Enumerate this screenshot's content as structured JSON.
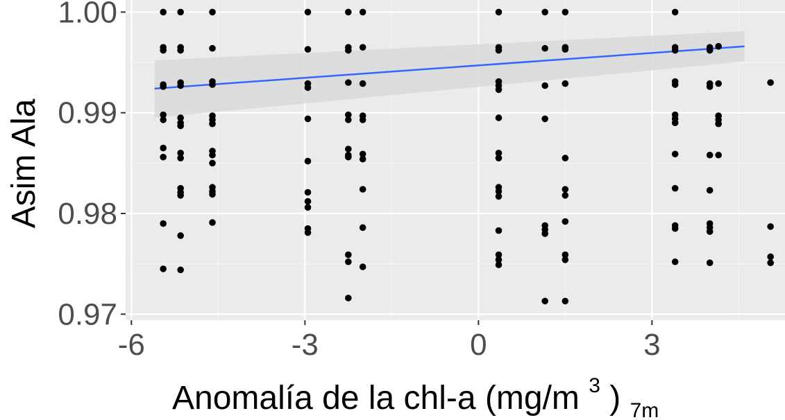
{
  "chart_data": {
    "type": "scatter",
    "title": "",
    "xlabel": "Anomalía de la chl-a (mg/m",
    "xlabel_superscript": "3",
    "xlabel_close": " )",
    "xlabel_subscript": "7m",
    "ylabel": "Asim Ala",
    "xlim": [
      -6.1,
      5.3
    ],
    "ylim": [
      0.9694,
      1.0012
    ],
    "x_ticks": [
      -6,
      -3,
      0,
      3
    ],
    "x_tick_labels": [
      "-6",
      "-3",
      "0",
      "3"
    ],
    "y_ticks": [
      0.97,
      0.98,
      0.99,
      1.0
    ],
    "y_tick_labels": [
      "0.97",
      "0.98",
      "0.99",
      "1.00"
    ],
    "grid": true,
    "legend": "none",
    "colors": {
      "panel_background": "#ebebeb",
      "grid_major": "#ffffff",
      "grid_minor": "#f5f5f5",
      "points": "#000000",
      "trend_line": "#3366ff",
      "confidence_band": "#d9d9d9"
    },
    "trend_line": {
      "method": "lm",
      "x": [
        -5.6,
        4.6
      ],
      "y": [
        0.9924,
        0.9966
      ],
      "ci_upper": [
        0.9952,
        0.9981
      ],
      "ci_lower": [
        0.9895,
        0.9951
      ]
    },
    "points": [
      {
        "x": -5.45,
        "y": 1.0
      },
      {
        "x": -5.45,
        "y": 0.9965
      },
      {
        "x": -5.45,
        "y": 0.9962
      },
      {
        "x": -5.45,
        "y": 0.9928
      },
      {
        "x": -5.45,
        "y": 0.9926
      },
      {
        "x": -5.45,
        "y": 0.9898
      },
      {
        "x": -5.45,
        "y": 0.9893
      },
      {
        "x": -5.45,
        "y": 0.9865
      },
      {
        "x": -5.45,
        "y": 0.9856
      },
      {
        "x": -5.45,
        "y": 0.979
      },
      {
        "x": -5.45,
        "y": 0.9745
      },
      {
        "x": -5.15,
        "y": 1.0
      },
      {
        "x": -5.15,
        "y": 0.9965
      },
      {
        "x": -5.15,
        "y": 0.9962
      },
      {
        "x": -5.15,
        "y": 0.993
      },
      {
        "x": -5.15,
        "y": 0.9927
      },
      {
        "x": -5.15,
        "y": 0.9895
      },
      {
        "x": -5.15,
        "y": 0.989
      },
      {
        "x": -5.15,
        "y": 0.9887
      },
      {
        "x": -5.15,
        "y": 0.986
      },
      {
        "x": -5.15,
        "y": 0.9855
      },
      {
        "x": -5.15,
        "y": 0.9825
      },
      {
        "x": -5.15,
        "y": 0.9821
      },
      {
        "x": -5.15,
        "y": 0.9818
      },
      {
        "x": -5.15,
        "y": 0.9778
      },
      {
        "x": -5.15,
        "y": 0.9744
      },
      {
        "x": -4.6,
        "y": 1.0
      },
      {
        "x": -4.6,
        "y": 0.9964
      },
      {
        "x": -4.6,
        "y": 0.9931
      },
      {
        "x": -4.6,
        "y": 0.9928
      },
      {
        "x": -4.6,
        "y": 0.9897
      },
      {
        "x": -4.6,
        "y": 0.9893
      },
      {
        "x": -4.6,
        "y": 0.9889
      },
      {
        "x": -4.6,
        "y": 0.9862
      },
      {
        "x": -4.6,
        "y": 0.9858
      },
      {
        "x": -4.6,
        "y": 0.985
      },
      {
        "x": -4.6,
        "y": 0.9826
      },
      {
        "x": -4.6,
        "y": 0.9822
      },
      {
        "x": -4.6,
        "y": 0.9819
      },
      {
        "x": -4.6,
        "y": 0.9791
      },
      {
        "x": -2.95,
        "y": 1.0
      },
      {
        "x": -2.95,
        "y": 0.9963
      },
      {
        "x": -2.95,
        "y": 0.9929
      },
      {
        "x": -2.95,
        "y": 0.9925
      },
      {
        "x": -2.95,
        "y": 0.9894
      },
      {
        "x": -2.95,
        "y": 0.9852
      },
      {
        "x": -2.95,
        "y": 0.9821
      },
      {
        "x": -2.95,
        "y": 0.9812
      },
      {
        "x": -2.95,
        "y": 0.9806
      },
      {
        "x": -2.95,
        "y": 0.9785
      },
      {
        "x": -2.95,
        "y": 0.9781
      },
      {
        "x": -2.25,
        "y": 1.0
      },
      {
        "x": -2.25,
        "y": 0.9965
      },
      {
        "x": -2.25,
        "y": 0.9962
      },
      {
        "x": -2.25,
        "y": 0.993
      },
      {
        "x": -2.25,
        "y": 0.9898
      },
      {
        "x": -2.25,
        "y": 0.9893
      },
      {
        "x": -2.25,
        "y": 0.9864
      },
      {
        "x": -2.25,
        "y": 0.9858
      },
      {
        "x": -2.25,
        "y": 0.9856
      },
      {
        "x": -2.25,
        "y": 0.9759
      },
      {
        "x": -2.25,
        "y": 0.9752
      },
      {
        "x": -2.25,
        "y": 0.9716
      },
      {
        "x": -2.0,
        "y": 1.0
      },
      {
        "x": -2.0,
        "y": 0.9965
      },
      {
        "x": -2.0,
        "y": 0.9929
      },
      {
        "x": -2.0,
        "y": 0.9897
      },
      {
        "x": -2.0,
        "y": 0.9893
      },
      {
        "x": -2.0,
        "y": 0.9859
      },
      {
        "x": -2.0,
        "y": 0.9854
      },
      {
        "x": -2.0,
        "y": 0.9824
      },
      {
        "x": -2.0,
        "y": 0.9786
      },
      {
        "x": -2.0,
        "y": 0.9747
      },
      {
        "x": 0.35,
        "y": 1.0
      },
      {
        "x": 0.35,
        "y": 0.9965
      },
      {
        "x": 0.35,
        "y": 0.9962
      },
      {
        "x": 0.35,
        "y": 0.9931
      },
      {
        "x": 0.35,
        "y": 0.9927
      },
      {
        "x": 0.35,
        "y": 0.9923
      },
      {
        "x": 0.35,
        "y": 0.9895
      },
      {
        "x": 0.35,
        "y": 0.986
      },
      {
        "x": 0.35,
        "y": 0.9855
      },
      {
        "x": 0.35,
        "y": 0.9826
      },
      {
        "x": 0.35,
        "y": 0.9822
      },
      {
        "x": 0.35,
        "y": 0.9817
      },
      {
        "x": 0.35,
        "y": 0.9783
      },
      {
        "x": 0.35,
        "y": 0.9759
      },
      {
        "x": 0.35,
        "y": 0.9754
      },
      {
        "x": 0.35,
        "y": 0.9749
      },
      {
        "x": 1.15,
        "y": 1.0
      },
      {
        "x": 1.15,
        "y": 0.9964
      },
      {
        "x": 1.15,
        "y": 0.9927
      },
      {
        "x": 1.15,
        "y": 0.9894
      },
      {
        "x": 1.15,
        "y": 0.9788
      },
      {
        "x": 1.15,
        "y": 0.9784
      },
      {
        "x": 1.15,
        "y": 0.978
      },
      {
        "x": 1.15,
        "y": 0.9713
      },
      {
        "x": 1.5,
        "y": 1.0
      },
      {
        "x": 1.5,
        "y": 0.9965
      },
      {
        "x": 1.5,
        "y": 0.9963
      },
      {
        "x": 1.5,
        "y": 0.9929
      },
      {
        "x": 1.5,
        "y": 0.9855
      },
      {
        "x": 1.5,
        "y": 0.9824
      },
      {
        "x": 1.5,
        "y": 0.9818
      },
      {
        "x": 1.5,
        "y": 0.9792
      },
      {
        "x": 1.5,
        "y": 0.9759
      },
      {
        "x": 1.5,
        "y": 0.9754
      },
      {
        "x": 1.5,
        "y": 0.9713
      },
      {
        "x": 3.4,
        "y": 1.0
      },
      {
        "x": 3.4,
        "y": 0.9965
      },
      {
        "x": 3.4,
        "y": 0.9962
      },
      {
        "x": 3.4,
        "y": 0.9931
      },
      {
        "x": 3.4,
        "y": 0.9928
      },
      {
        "x": 3.4,
        "y": 0.9898
      },
      {
        "x": 3.4,
        "y": 0.9894
      },
      {
        "x": 3.4,
        "y": 0.989
      },
      {
        "x": 3.4,
        "y": 0.9859
      },
      {
        "x": 3.4,
        "y": 0.9825
      },
      {
        "x": 3.4,
        "y": 0.9788
      },
      {
        "x": 3.4,
        "y": 0.9785
      },
      {
        "x": 3.4,
        "y": 0.9752
      },
      {
        "x": 4.0,
        "y": 0.9965
      },
      {
        "x": 4.0,
        "y": 0.9962
      },
      {
        "x": 4.0,
        "y": 0.9929
      },
      {
        "x": 4.0,
        "y": 0.9926
      },
      {
        "x": 4.0,
        "y": 0.9858
      },
      {
        "x": 4.0,
        "y": 0.9823
      },
      {
        "x": 4.0,
        "y": 0.979
      },
      {
        "x": 4.0,
        "y": 0.9786
      },
      {
        "x": 4.0,
        "y": 0.9782
      },
      {
        "x": 4.0,
        "y": 0.9751
      },
      {
        "x": 4.15,
        "y": 0.9966
      },
      {
        "x": 4.15,
        "y": 0.9929
      },
      {
        "x": 4.15,
        "y": 0.9897
      },
      {
        "x": 4.15,
        "y": 0.9893
      },
      {
        "x": 4.15,
        "y": 0.9889
      },
      {
        "x": 4.15,
        "y": 0.9858
      },
      {
        "x": 5.05,
        "y": 0.993
      },
      {
        "x": 5.05,
        "y": 0.9787
      },
      {
        "x": 5.05,
        "y": 0.9757
      },
      {
        "x": 5.05,
        "y": 0.9751
      }
    ]
  }
}
